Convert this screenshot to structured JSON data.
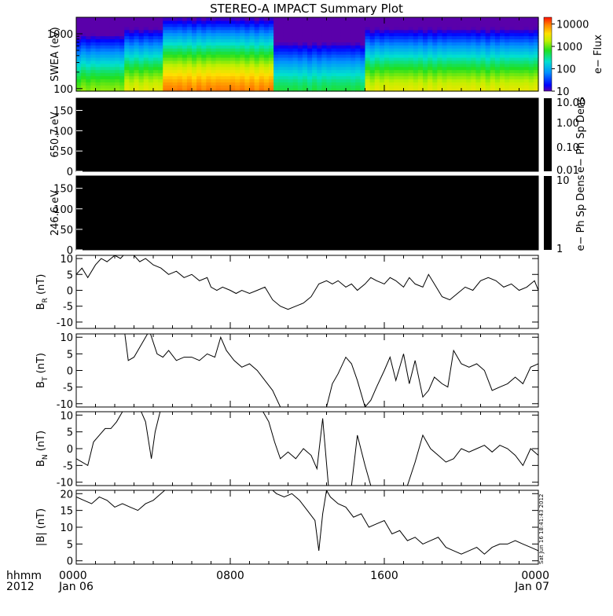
{
  "title": "STEREO-A IMPACT Summary Plot",
  "footer": {
    "hhmm": "hhmm",
    "year": "2012",
    "time_ticks": [
      "0000",
      "0800",
      "1600",
      "0000"
    ],
    "dates": [
      "Jan 06",
      "Jan 07"
    ]
  },
  "timestamp": "Sat Jun 16 18:41:43 2012",
  "chart_data": [
    {
      "type": "heatmap",
      "panel": "swea",
      "ylabel": "SWEA (eV)",
      "yscale": "log",
      "ylim": [
        90,
        2000
      ],
      "ytick_labels": [
        "100",
        "1000"
      ],
      "colorbar": {
        "label": "e− Flux",
        "scale": "log",
        "range": [
          10,
          20000
        ],
        "tick_labels": [
          "10",
          "100",
          "1000",
          "10000"
        ]
      },
      "xlim_hours": [
        0,
        24
      ],
      "segments": [
        {
          "x_hours": [
            0,
            2.5
          ],
          "peak_flux_low_energy": 1200
        },
        {
          "x_hours": [
            2.5,
            4.5
          ],
          "peak_flux_low_energy": 2500
        },
        {
          "x_hours": [
            4.5,
            10.2
          ],
          "peak_flux_low_energy": 9000
        },
        {
          "x_hours": [
            10.2,
            15.0
          ],
          "peak_flux_low_energy": 500
        },
        {
          "x_hours": [
            15.0,
            24.0
          ],
          "peak_flux_low_energy": 2500
        }
      ]
    },
    {
      "type": "heatmap",
      "panel": "pad_650",
      "ylabel": "650.7 eV",
      "ylim": [
        0,
        180
      ],
      "ytick_labels": [
        "0",
        "50",
        "100",
        "150"
      ],
      "colorbar": {
        "label": "e− Ph Sp Dens",
        "scale": "log",
        "tick_labels": [
          "0.01",
          "0.10",
          "1.00",
          "10.00"
        ]
      },
      "fill": "#000000"
    },
    {
      "type": "heatmap",
      "panel": "pad_246",
      "ylabel": "246.6 eV",
      "ylim": [
        0,
        180
      ],
      "ytick_labels": [
        "0",
        "50",
        "100",
        "150"
      ],
      "colorbar": {
        "label": "e− Ph Sp Dens",
        "scale": "log",
        "tick_labels": [
          "1",
          "10"
        ]
      },
      "fill": "#000000"
    },
    {
      "type": "line",
      "panel": "br",
      "ylabel": {
        "main": "B",
        "sub": "R",
        "unit": " (nT)"
      },
      "ylim": [
        -12,
        11
      ],
      "ytick_labels": [
        "-10",
        "-5",
        "0",
        "5",
        "10"
      ],
      "x_hours": [
        0,
        0.3,
        0.6,
        1,
        1.3,
        1.6,
        2,
        2.3,
        2.6,
        3,
        3.3,
        3.6,
        4,
        4.4,
        4.8,
        5.2,
        5.6,
        6,
        6.4,
        6.8,
        7,
        7.3,
        7.6,
        8,
        8.3,
        8.6,
        9,
        9.4,
        9.8,
        10.2,
        10.6,
        11,
        11.4,
        11.8,
        12.2,
        12.6,
        13,
        13.3,
        13.6,
        14,
        14.3,
        14.6,
        15,
        15.3,
        15.6,
        16,
        16.3,
        16.6,
        17,
        17.3,
        17.6,
        18,
        18.3,
        18.6,
        19,
        19.4,
        19.8,
        20.2,
        20.6,
        21,
        21.4,
        21.8,
        22.2,
        22.6,
        23,
        23.4,
        23.8,
        24
      ],
      "values": [
        5,
        7,
        4,
        8,
        10,
        9,
        11,
        10,
        12,
        11,
        9,
        10,
        8,
        7,
        5,
        6,
        4,
        5,
        3,
        4,
        1,
        0,
        1,
        0,
        -1,
        0,
        -1,
        0,
        1,
        -3,
        -5,
        -6,
        -5,
        -4,
        -2,
        2,
        3,
        2,
        3,
        1,
        2,
        0,
        2,
        4,
        3,
        2,
        4,
        3,
        1,
        4,
        2,
        1,
        5,
        2,
        -2,
        -3,
        -1,
        1,
        0,
        3,
        4,
        3,
        1,
        2,
        0,
        1,
        3,
        0
      ]
    },
    {
      "type": "line",
      "panel": "bt",
      "ylabel": {
        "main": "B",
        "sub": "T",
        "unit": " (nT)"
      },
      "ylim": [
        -11,
        11
      ],
      "ytick_labels": [
        "-10",
        "-5",
        "0",
        "5",
        "10"
      ],
      "x_hours": [
        0,
        0.3,
        0.6,
        1,
        1.4,
        1.8,
        2.2,
        2.5,
        2.7,
        3,
        3.4,
        3.8,
        4.2,
        4.5,
        4.8,
        5.2,
        5.6,
        6,
        6.4,
        6.8,
        7.2,
        7.5,
        7.8,
        8.2,
        8.6,
        9,
        9.4,
        9.8,
        10.2,
        10.6,
        11,
        11.4,
        11.8,
        12.2,
        12.6,
        13,
        13.3,
        13.6,
        14,
        14.3,
        14.6,
        15,
        15.3,
        15.6,
        16,
        16.3,
        16.6,
        17,
        17.3,
        17.6,
        18,
        18.3,
        18.6,
        19,
        19.3,
        19.6,
        20,
        20.4,
        20.8,
        21.2,
        21.6,
        22,
        22.4,
        22.8,
        23.2,
        23.6,
        24
      ],
      "values": [
        11,
        12,
        12,
        12,
        12,
        12,
        12,
        12,
        3,
        4,
        8,
        12,
        5,
        4,
        6,
        3,
        4,
        4,
        3,
        5,
        4,
        10,
        6,
        3,
        1,
        2,
        0,
        -3,
        -6,
        -11,
        -11,
        -11,
        -11,
        -11,
        -11,
        -11,
        -4,
        -1,
        4,
        2,
        -3,
        -11,
        -9,
        -5,
        0,
        4,
        -3,
        5,
        -4,
        3,
        -8,
        -6,
        -2,
        -4,
        -5,
        6,
        2,
        1,
        2,
        0,
        -6,
        -5,
        -4,
        -2,
        -4,
        1,
        2
      ]
    },
    {
      "type": "line",
      "panel": "bn",
      "ylabel": {
        "main": "B",
        "sub": "N",
        "unit": " (nT)"
      },
      "ylim": [
        -11,
        11
      ],
      "ytick_labels": [
        "-10",
        "-5",
        "0",
        "5",
        "10"
      ],
      "x_hours": [
        0,
        0.3,
        0.6,
        0.9,
        1.2,
        1.5,
        1.8,
        2.1,
        2.4,
        2.7,
        3,
        3.3,
        3.6,
        3.9,
        4.1,
        4.4,
        4.6,
        5,
        5.4,
        5.8,
        6.2,
        6.6,
        7,
        7.4,
        7.8,
        8.2,
        8.6,
        9,
        9.3,
        9.6,
        10,
        10.3,
        10.6,
        11,
        11.4,
        11.8,
        12.2,
        12.5,
        12.8,
        13.1,
        13.4,
        13.7,
        14,
        14.3,
        14.6,
        15,
        15.3,
        15.6,
        16,
        16.4,
        16.8,
        17.2,
        17.6,
        18,
        18.4,
        18.8,
        19.2,
        19.6,
        20,
        20.4,
        20.8,
        21.2,
        21.6,
        22,
        22.4,
        22.8,
        23.2,
        23.6,
        24
      ],
      "values": [
        -3,
        -4,
        -5,
        2,
        4,
        6,
        6,
        8,
        11,
        12,
        12,
        12,
        8,
        -3,
        5,
        12,
        12,
        12,
        12,
        12,
        12,
        12,
        12,
        12,
        12,
        12,
        12,
        12,
        12,
        12,
        8,
        2,
        -3,
        -1,
        -3,
        0,
        -2,
        -6,
        9,
        -11,
        -11,
        -11,
        -11,
        -11,
        4,
        -5,
        -11,
        -11,
        -11,
        -11,
        -11,
        -11,
        -4,
        4,
        0,
        -2,
        -4,
        -3,
        0,
        -1,
        0,
        1,
        -1,
        1,
        0,
        -2,
        -5,
        0,
        -2
      ]
    },
    {
      "type": "line",
      "panel": "bmag",
      "ylabel": "|B| (nT)",
      "ylim": [
        -1,
        21
      ],
      "ytick_labels": [
        "0",
        "5",
        "10",
        "15",
        "20"
      ],
      "x_hours": [
        0,
        0.4,
        0.8,
        1.2,
        1.6,
        2,
        2.4,
        2.8,
        3.2,
        3.6,
        4,
        4.4,
        4.8,
        5.2,
        5.6,
        6,
        6.4,
        6.8,
        7.2,
        7.6,
        8,
        8.4,
        8.8,
        9.2,
        9.6,
        10,
        10.4,
        10.8,
        11.2,
        11.6,
        12,
        12.4,
        12.6,
        12.8,
        13,
        13.2,
        13.6,
        14,
        14.4,
        14.8,
        15.2,
        15.6,
        16,
        16.4,
        16.8,
        17.2,
        17.6,
        18,
        18.4,
        18.8,
        19.2,
        19.6,
        20,
        20.4,
        20.8,
        21.2,
        21.6,
        22,
        22.4,
        22.8,
        23.2,
        23.6,
        24
      ],
      "values": [
        19,
        18,
        17,
        19,
        18,
        16,
        17,
        16,
        15,
        17,
        18,
        20,
        22,
        22,
        22,
        22,
        22,
        22,
        22,
        22,
        22,
        22,
        22,
        22,
        22,
        22,
        20,
        19,
        20,
        18,
        15,
        12,
        3,
        14,
        21,
        19,
        17,
        16,
        13,
        14,
        10,
        11,
        12,
        8,
        9,
        6,
        7,
        5,
        6,
        7,
        4,
        3,
        2,
        3,
        4,
        2,
        4,
        5,
        5,
        6,
        5,
        4,
        3
      ]
    }
  ]
}
